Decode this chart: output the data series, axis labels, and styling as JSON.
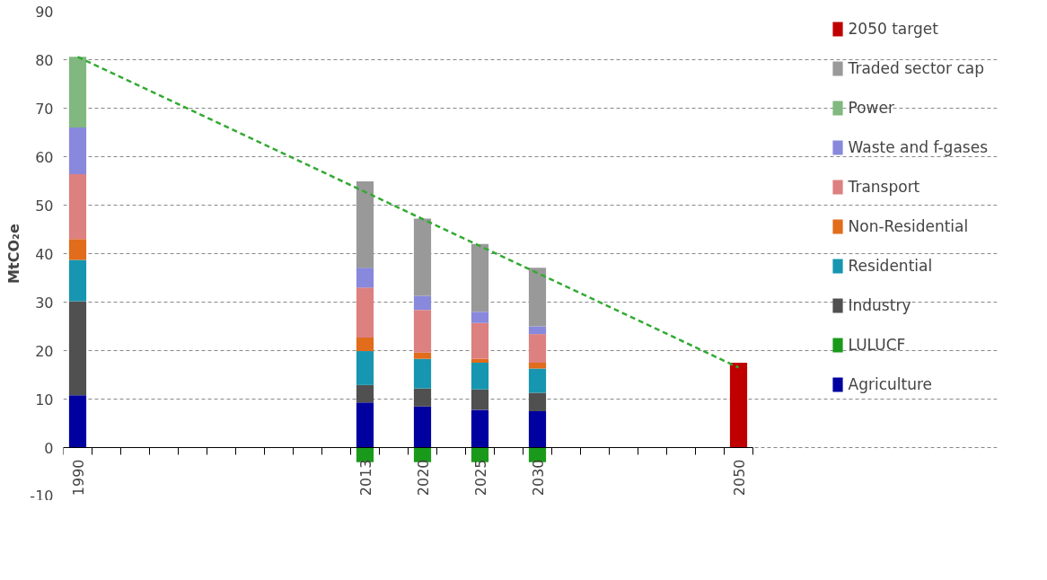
{
  "chart_data": {
    "type": "bar",
    "stacked": true,
    "ylabel": "MtCO₂e",
    "categories": [
      "1990",
      null,
      null,
      null,
      null,
      null,
      null,
      null,
      null,
      null,
      "2013",
      null,
      "2020",
      null,
      "2025",
      null,
      "2030",
      null,
      null,
      null,
      null,
      null,
      null,
      "2050"
    ],
    "ylim": [
      -10,
      90
    ],
    "yticks": [
      -10,
      0,
      10,
      20,
      30,
      40,
      50,
      60,
      70,
      80,
      90
    ],
    "grid": "y",
    "legend": "right",
    "series": [
      {
        "name": "Agriculture",
        "color": "#0000a0",
        "values": [
          10.8,
          null,
          null,
          null,
          null,
          null,
          null,
          null,
          null,
          null,
          9.3,
          null,
          8.5,
          null,
          7.8,
          null,
          7.5,
          null,
          null,
          null,
          null,
          null,
          null,
          null
        ]
      },
      {
        "name": "LULUCF",
        "color": "#1a9a1a",
        "values": [
          null,
          null,
          null,
          null,
          null,
          null,
          null,
          null,
          null,
          null,
          -3,
          null,
          -3,
          null,
          -3,
          null,
          -3,
          null,
          null,
          null,
          null,
          null,
          null,
          null
        ]
      },
      {
        "name": "Industry",
        "color": "#505050",
        "values": [
          19.4,
          null,
          null,
          null,
          null,
          null,
          null,
          null,
          null,
          null,
          3.6,
          null,
          3.7,
          null,
          4.2,
          null,
          3.8,
          null,
          null,
          null,
          null,
          null,
          null,
          null
        ]
      },
      {
        "name": "Residential",
        "color": "#1696b0",
        "values": [
          8.5,
          null,
          null,
          null,
          null,
          null,
          null,
          null,
          null,
          null,
          7.0,
          null,
          6.1,
          null,
          5.5,
          null,
          5.0,
          null,
          null,
          null,
          null,
          null,
          null,
          null
        ]
      },
      {
        "name": "Non-Residential",
        "color": "#e06c1c",
        "values": [
          4.3,
          null,
          null,
          null,
          null,
          null,
          null,
          null,
          null,
          null,
          2.8,
          null,
          1.3,
          null,
          0.8,
          null,
          1.2,
          null,
          null,
          null,
          null,
          null,
          null,
          null
        ]
      },
      {
        "name": "Transport",
        "color": "#dd8080",
        "values": [
          13.4,
          null,
          null,
          null,
          null,
          null,
          null,
          null,
          null,
          null,
          10.3,
          null,
          8.8,
          null,
          7.4,
          null,
          5.9,
          null,
          null,
          null,
          null,
          null,
          null,
          null
        ]
      },
      {
        "name": "Waste and f-gases",
        "color": "#8888dd",
        "values": [
          9.6,
          null,
          null,
          null,
          null,
          null,
          null,
          null,
          null,
          null,
          4.1,
          null,
          2.9,
          null,
          2.3,
          null,
          1.6,
          null,
          null,
          null,
          null,
          null,
          null,
          null
        ]
      },
      {
        "name": "Power",
        "color": "#80b880",
        "values": [
          14.6,
          null,
          null,
          null,
          null,
          null,
          null,
          null,
          null,
          null,
          null,
          null,
          null,
          null,
          null,
          null,
          null,
          null,
          null,
          null,
          null,
          null,
          null,
          null
        ]
      },
      {
        "name": "Traded sector cap",
        "color": "#999999",
        "values": [
          null,
          null,
          null,
          null,
          null,
          null,
          null,
          null,
          null,
          null,
          17.8,
          null,
          15.9,
          null,
          14.0,
          null,
          12.1,
          null,
          null,
          null,
          null,
          null,
          null,
          null
        ]
      },
      {
        "name": "2050 target",
        "color": "#c00000",
        "values": [
          null,
          null,
          null,
          null,
          null,
          null,
          null,
          null,
          null,
          null,
          null,
          null,
          null,
          null,
          null,
          null,
          null,
          null,
          null,
          null,
          null,
          null,
          null,
          17.5
        ]
      },
      {
        "type": "line",
        "color": "#33aa33",
        "line_style": "dashed",
        "values": [
          80.6,
          null,
          null,
          null,
          null,
          null,
          null,
          null,
          null,
          null,
          null,
          null,
          null,
          null,
          null,
          null,
          null,
          null,
          null,
          null,
          null,
          null,
          null,
          16.5
        ]
      }
    ]
  }
}
